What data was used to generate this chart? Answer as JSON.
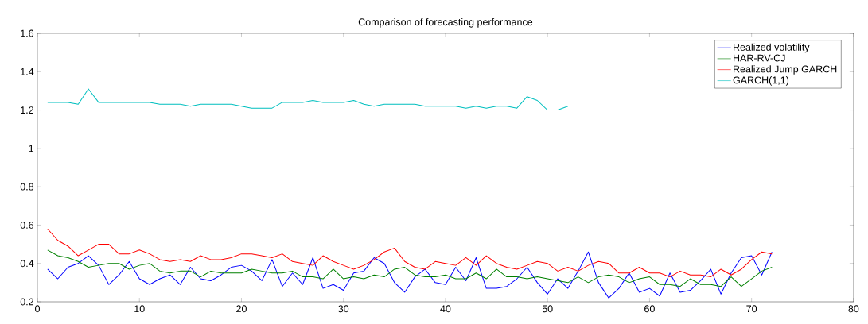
{
  "chart_data": {
    "type": "line",
    "title": "Comparison of forecasting performance",
    "x": [
      1,
      2,
      3,
      4,
      5,
      6,
      7,
      8,
      9,
      10,
      11,
      12,
      13,
      14,
      15,
      16,
      17,
      18,
      19,
      20,
      21,
      22,
      23,
      24,
      25,
      26,
      27,
      28,
      29,
      30,
      31,
      32,
      33,
      34,
      35,
      36,
      37,
      38,
      39,
      40,
      41,
      42,
      43,
      44,
      45,
      46,
      47,
      48,
      49,
      50,
      51,
      52,
      53,
      54,
      55,
      56,
      57,
      58,
      59,
      60,
      61,
      62,
      63,
      64,
      65,
      66,
      67,
      68,
      69,
      70,
      71,
      72
    ],
    "series": [
      {
        "name": "Realized volatility",
        "color": "#0000ff",
        "values": [
          0.37,
          0.32,
          0.38,
          0.4,
          0.44,
          0.39,
          0.29,
          0.34,
          0.41,
          0.32,
          0.29,
          0.32,
          0.34,
          0.29,
          0.38,
          0.32,
          0.31,
          0.34,
          0.38,
          0.39,
          0.36,
          0.31,
          0.42,
          0.28,
          0.35,
          0.29,
          0.43,
          0.27,
          0.29,
          0.26,
          0.35,
          0.36,
          0.43,
          0.4,
          0.3,
          0.25,
          0.33,
          0.37,
          0.3,
          0.29,
          0.38,
          0.31,
          0.43,
          0.27,
          0.27,
          0.28,
          0.32,
          0.38,
          0.3,
          0.24,
          0.32,
          0.27,
          0.36,
          0.46,
          0.3,
          0.22,
          0.27,
          0.35,
          0.25,
          0.27,
          0.23,
          0.35,
          0.25,
          0.26,
          0.31,
          0.37,
          0.24,
          0.35,
          0.43,
          0.44,
          0.34,
          0.46
        ]
      },
      {
        "name": "HAR-RV-CJ",
        "color": "#008000",
        "values": [
          0.47,
          0.44,
          0.43,
          0.41,
          0.38,
          0.39,
          0.4,
          0.4,
          0.37,
          0.39,
          0.4,
          0.36,
          0.35,
          0.36,
          0.36,
          0.33,
          0.36,
          0.35,
          0.35,
          0.35,
          0.37,
          0.36,
          0.35,
          0.35,
          0.36,
          0.33,
          0.33,
          0.32,
          0.37,
          0.32,
          0.33,
          0.32,
          0.34,
          0.33,
          0.37,
          0.38,
          0.34,
          0.33,
          0.33,
          0.34,
          0.32,
          0.32,
          0.35,
          0.32,
          0.37,
          0.33,
          0.33,
          0.32,
          0.33,
          0.32,
          0.31,
          0.3,
          0.33,
          0.3,
          0.33,
          0.34,
          0.33,
          0.3,
          0.32,
          0.33,
          0.29,
          0.29,
          0.28,
          0.32,
          0.29,
          0.29,
          0.28,
          0.33,
          0.28,
          0.32,
          0.36,
          0.38
        ]
      },
      {
        "name": "Realized Jump GARCH",
        "color": "#ff0000",
        "values": [
          0.58,
          0.52,
          0.49,
          0.44,
          0.47,
          0.5,
          0.5,
          0.45,
          0.45,
          0.47,
          0.45,
          0.42,
          0.41,
          0.42,
          0.41,
          0.44,
          0.42,
          0.42,
          0.43,
          0.45,
          0.45,
          0.44,
          0.43,
          0.45,
          0.41,
          0.4,
          0.39,
          0.44,
          0.41,
          0.39,
          0.37,
          0.39,
          0.42,
          0.46,
          0.48,
          0.41,
          0.38,
          0.37,
          0.41,
          0.4,
          0.39,
          0.43,
          0.39,
          0.44,
          0.4,
          0.38,
          0.37,
          0.39,
          0.41,
          0.4,
          0.36,
          0.38,
          0.36,
          0.39,
          0.41,
          0.4,
          0.35,
          0.35,
          0.38,
          0.35,
          0.35,
          0.33,
          0.36,
          0.34,
          0.34,
          0.33,
          0.37,
          0.34,
          0.37,
          0.42,
          0.46,
          0.45
        ]
      },
      {
        "name": "GARCH(1,1)",
        "color": "#00bfbf",
        "values": [
          1.24,
          1.24,
          1.24,
          1.23,
          1.31,
          1.24,
          1.24,
          1.24,
          1.24,
          1.24,
          1.24,
          1.23,
          1.23,
          1.23,
          1.22,
          1.23,
          1.23,
          1.23,
          1.23,
          1.22,
          1.21,
          1.21,
          1.21,
          1.24,
          1.24,
          1.24,
          1.25,
          1.24,
          1.24,
          1.24,
          1.25,
          1.23,
          1.22,
          1.23,
          1.23,
          1.23,
          1.23,
          1.22,
          1.22,
          1.22,
          1.22,
          1.21,
          1.22,
          1.21,
          1.22,
          1.22,
          1.21,
          1.27,
          1.25,
          1.2,
          1.2,
          1.22,
          null,
          null,
          null,
          null,
          null,
          null,
          null,
          null,
          null,
          null,
          null,
          null,
          null,
          null,
          null,
          null,
          null,
          null,
          null,
          null
        ]
      }
    ],
    "xlim": [
      0,
      80
    ],
    "ylim": [
      0.2,
      1.6
    ],
    "xticks": [
      0,
      10,
      20,
      30,
      40,
      50,
      60,
      70,
      80
    ],
    "yticks": [
      0.2,
      0.4,
      0.6,
      0.8,
      1,
      1.2,
      1.4,
      1.6
    ],
    "legend": "top right",
    "marker": "none",
    "line_style": "solid"
  }
}
